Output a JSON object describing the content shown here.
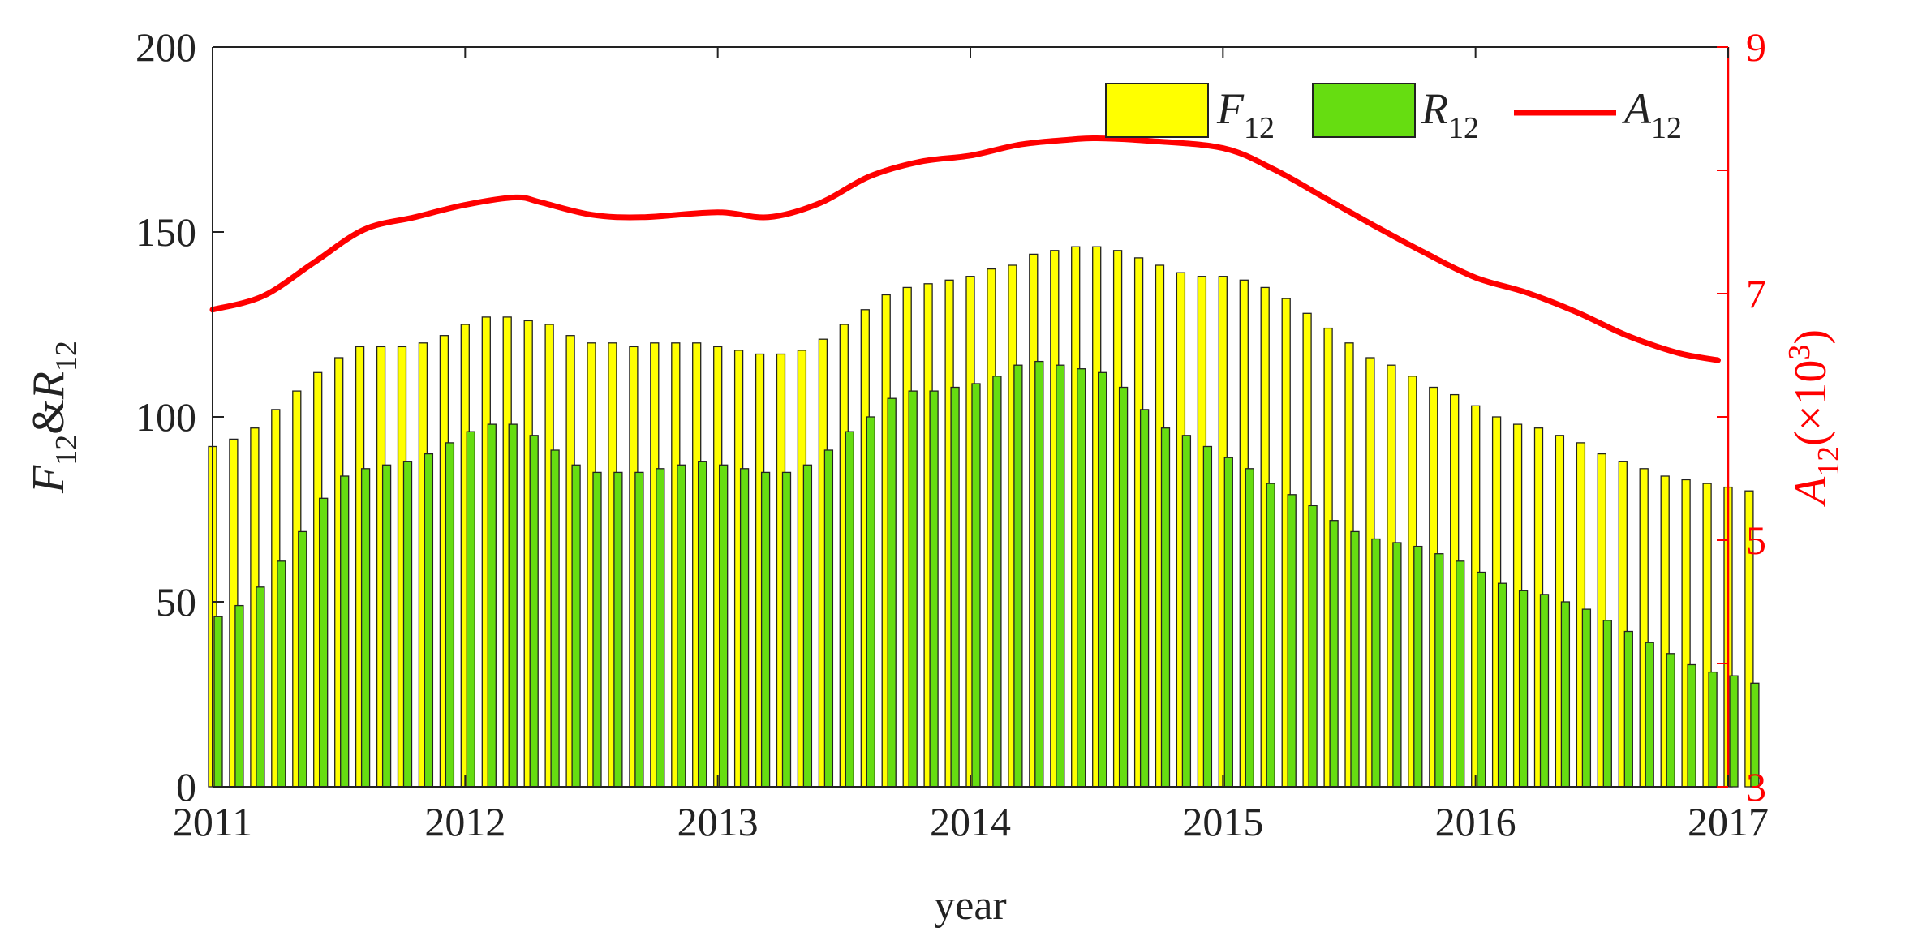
{
  "chart_data": {
    "type": "bar",
    "title": "",
    "xlabel": "year",
    "ylabel_left": "F12&R12",
    "ylabel_right": "A12(×10³)",
    "xlim": [
      2011,
      2017
    ],
    "ylim_left": [
      0,
      200
    ],
    "ylim_right": [
      3,
      9
    ],
    "x_ticks": [
      "2011",
      "2012",
      "2013",
      "2014",
      "2015",
      "2016",
      "2017"
    ],
    "y_ticks_left": [
      "0",
      "50",
      "100",
      "150",
      "200"
    ],
    "y_ticks_right": [
      "3",
      "5",
      "7",
      "9"
    ],
    "legend_position": "top-right",
    "grid": false,
    "series": [
      {
        "name": "F12",
        "type": "bar",
        "axis": "left",
        "color": "#ffff00",
        "values": [
          92,
          94,
          97,
          102,
          107,
          112,
          116,
          119,
          119,
          119,
          120,
          122,
          125,
          127,
          127,
          126,
          125,
          122,
          120,
          120,
          119,
          120,
          120,
          120,
          119,
          118,
          117,
          117,
          118,
          121,
          125,
          129,
          133,
          135,
          136,
          137,
          138,
          140,
          141,
          144,
          145,
          146,
          146,
          145,
          143,
          141,
          139,
          138,
          138,
          137,
          135,
          132,
          128,
          124,
          120,
          116,
          114,
          111,
          108,
          106,
          103,
          100,
          98,
          97,
          95,
          93,
          90,
          88,
          86,
          84,
          83,
          82,
          81,
          80
        ]
      },
      {
        "name": "R12",
        "type": "bar",
        "axis": "left",
        "color": "#66dd11",
        "values": [
          46,
          49,
          54,
          61,
          69,
          78,
          84,
          86,
          87,
          88,
          90,
          93,
          96,
          98,
          98,
          95,
          91,
          87,
          85,
          85,
          85,
          86,
          87,
          88,
          87,
          86,
          85,
          85,
          87,
          91,
          96,
          100,
          105,
          107,
          107,
          108,
          109,
          111,
          114,
          115,
          114,
          113,
          112,
          108,
          102,
          97,
          95,
          92,
          89,
          86,
          82,
          79,
          76,
          72,
          69,
          67,
          66,
          65,
          63,
          61,
          58,
          55,
          53,
          52,
          50,
          48,
          45,
          42,
          39,
          36,
          33,
          31,
          30,
          28
        ]
      },
      {
        "name": "A12",
        "type": "line",
        "axis": "right",
        "color": "#ff0000",
        "x": [
          2011.0,
          2011.2,
          2011.4,
          2011.6,
          2011.8,
          2012.0,
          2012.2,
          2012.3,
          2012.5,
          2012.7,
          2013.0,
          2013.2,
          2013.4,
          2013.6,
          2013.8,
          2014.0,
          2014.2,
          2014.4,
          2014.5,
          2014.7,
          2015.0,
          2015.2,
          2015.4,
          2015.6,
          2015.8,
          2016.0,
          2016.2,
          2016.4,
          2016.6,
          2016.8,
          2016.96
        ],
        "values": [
          6.87,
          6.98,
          7.25,
          7.52,
          7.62,
          7.72,
          7.78,
          7.74,
          7.64,
          7.62,
          7.66,
          7.62,
          7.73,
          7.95,
          8.07,
          8.12,
          8.21,
          8.25,
          8.26,
          8.24,
          8.18,
          8.01,
          7.78,
          7.55,
          7.33,
          7.13,
          7.01,
          6.85,
          6.66,
          6.52,
          6.46
        ]
      }
    ]
  }
}
